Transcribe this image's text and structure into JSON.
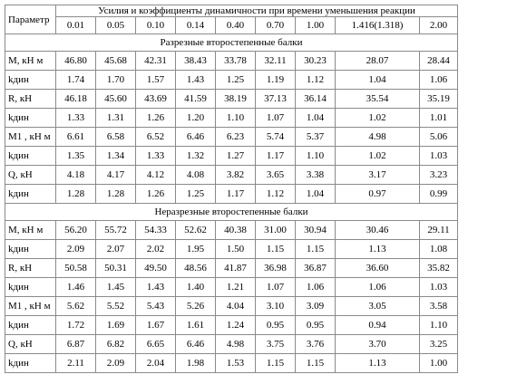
{
  "table": {
    "param_header": "Параметр",
    "group_header": "Усилия и коэффициенты динамичности при времени уменьшения реакции",
    "times": [
      "0.01",
      "0.05",
      "0.10",
      "0.14",
      "0.40",
      "0.70",
      "1.00",
      "1.416(1.318)",
      "2.00"
    ],
    "sections": [
      {
        "title": "Разрезные второстепенные балки",
        "rows": [
          {
            "label": "M, кН м",
            "values": [
              "46.80",
              "45.68",
              "42.31",
              "38.43",
              "33.78",
              "32.11",
              "30.23",
              "28.07",
              "28.44"
            ]
          },
          {
            "label": "kдин",
            "values": [
              "1.74",
              "1.70",
              "1.57",
              "1.43",
              "1.25",
              "1.19",
              "1.12",
              "1.04",
              "1.06"
            ]
          },
          {
            "label": "R, кН",
            "values": [
              "46.18",
              "45.60",
              "43.69",
              "41.59",
              "38.19",
              "37.13",
              "36.14",
              "35.54",
              "35.19"
            ]
          },
          {
            "label": "kдин",
            "values": [
              "1.33",
              "1.31",
              "1.26",
              "1.20",
              "1.10",
              "1.07",
              "1.04",
              "1.02",
              "1.01"
            ]
          },
          {
            "label": "M1 , кН м",
            "values": [
              "6.61",
              "6.58",
              "6.52",
              "6.46",
              "6.23",
              "5.74",
              "5.37",
              "4.98",
              "5.06"
            ]
          },
          {
            "label": "kдин",
            "values": [
              "1.35",
              "1.34",
              "1.33",
              "1.32",
              "1.27",
              "1.17",
              "1.10",
              "1.02",
              "1.03"
            ]
          },
          {
            "label": "Q, кН",
            "values": [
              "4.18",
              "4.17",
              "4.12",
              "4.08",
              "3.82",
              "3.65",
              "3.38",
              "3.17",
              "3.23"
            ]
          },
          {
            "label": "kдин",
            "values": [
              "1.28",
              "1.28",
              "1.26",
              "1.25",
              "1.17",
              "1.12",
              "1.04",
              "0.97",
              "0.99"
            ]
          }
        ]
      },
      {
        "title": "Неразрезные второстепенные балки",
        "rows": [
          {
            "label": "M, кН м",
            "values": [
              "56.20",
              "55.72",
              "54.33",
              "52.62",
              "40.38",
              "31.00",
              "30.94",
              "30.46",
              "29.11"
            ]
          },
          {
            "label": "kдин",
            "values": [
              "2.09",
              "2.07",
              "2.02",
              "1.95",
              "1.50",
              "1.15",
              "1.15",
              "1.13",
              "1.08"
            ]
          },
          {
            "label": "R, кН",
            "values": [
              "50.58",
              "50.31",
              "49.50",
              "48.56",
              "41.87",
              "36.98",
              "36.87",
              "36.60",
              "35.82"
            ]
          },
          {
            "label": "kдин",
            "values": [
              "1.46",
              "1.45",
              "1.43",
              "1.40",
              "1.21",
              "1.07",
              "1.06",
              "1.06",
              "1.03"
            ]
          },
          {
            "label": "M1 , кН м",
            "values": [
              "5.62",
              "5.52",
              "5.43",
              "5.26",
              "4.04",
              "3.10",
              "3.09",
              "3.05",
              "3.58"
            ]
          },
          {
            "label": "kдин",
            "values": [
              "1.72",
              "1.69",
              "1.67",
              "1.61",
              "1.24",
              "0.95",
              "0.95",
              "0.94",
              "1.10"
            ]
          },
          {
            "label": "Q, кН",
            "values": [
              "6.87",
              "6.82",
              "6.65",
              "6.46",
              "4.98",
              "3.75",
              "3.76",
              "3.70",
              "3.25"
            ]
          },
          {
            "label": "kдин",
            "values": [
              "2.11",
              "2.09",
              "2.04",
              "1.98",
              "1.53",
              "1.15",
              "1.15",
              "1.13",
              "1.00"
            ]
          }
        ]
      }
    ]
  }
}
